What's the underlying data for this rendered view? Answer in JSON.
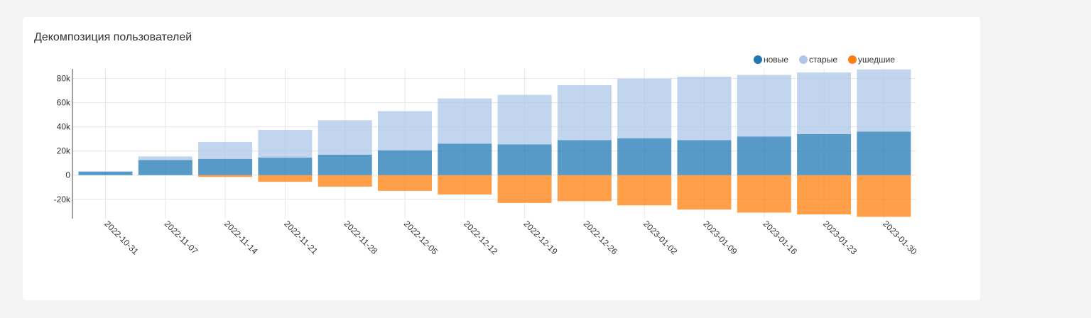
{
  "card": {
    "title": "Декомпозиция пользователей"
  },
  "legend": [
    {
      "label": "новые",
      "color": "#1f77b4"
    },
    {
      "label": "старые",
      "color": "#aec7e8"
    },
    {
      "label": "ушедшие",
      "color": "#ff7f0e"
    }
  ],
  "chart_data": {
    "type": "bar",
    "stacked": true,
    "title": "Декомпозиция пользователей",
    "xlabel": "",
    "ylabel": "",
    "ylim": [
      -36000,
      88000
    ],
    "yticks": [
      -20000,
      0,
      20000,
      40000,
      60000,
      80000
    ],
    "ytick_labels": [
      "-20k",
      "0",
      "20k",
      "40k",
      "60k",
      "80k"
    ],
    "grid": true,
    "legend_position": "top-right",
    "categories": [
      "2022-10-31",
      "2022-11-07",
      "2022-11-14",
      "2022-11-21",
      "2022-11-28",
      "2022-12-05",
      "2022-12-12",
      "2022-12-19",
      "2022-12-26",
      "2023-01-02",
      "2023-01-09",
      "2023-01-16",
      "2023-01-23",
      "2023-01-30"
    ],
    "series": [
      {
        "name": "новые",
        "color": "#1f77b4",
        "values": [
          3000,
          12500,
          13500,
          14500,
          17000,
          20500,
          26000,
          25500,
          29000,
          30500,
          29000,
          32000,
          34000,
          36000
        ]
      },
      {
        "name": "старые",
        "color": "#aec7e8",
        "values": [
          0,
          3000,
          14000,
          23000,
          28500,
          32500,
          37500,
          41000,
          45500,
          49500,
          52500,
          51000,
          51000,
          51500
        ]
      },
      {
        "name": "ушедшие",
        "color": "#ff7f0e",
        "values": [
          0,
          0,
          -1500,
          -5500,
          -9500,
          -13000,
          -16000,
          -23000,
          -21500,
          -25000,
          -28500,
          -31000,
          -32500,
          -34500
        ]
      }
    ]
  }
}
